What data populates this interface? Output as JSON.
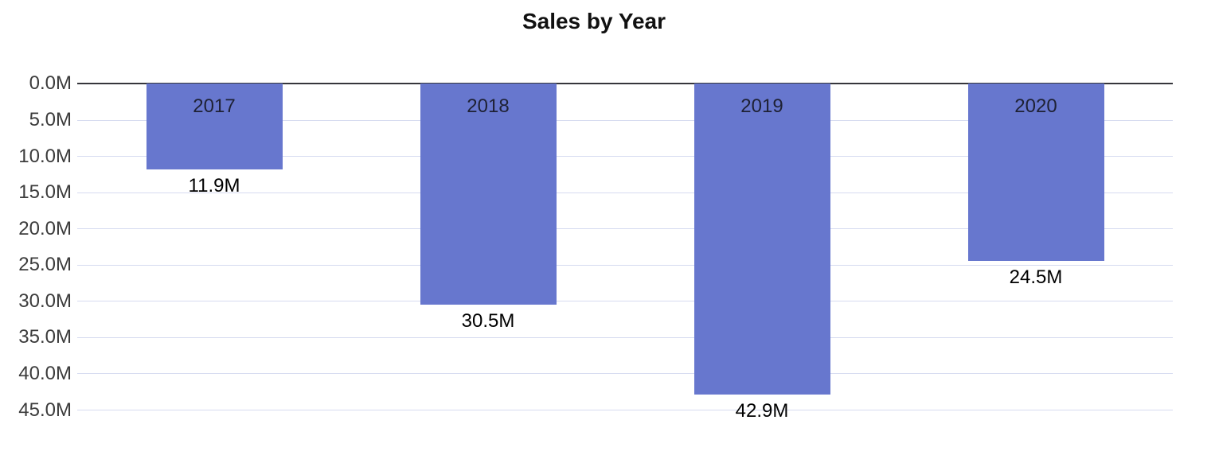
{
  "chart_data": {
    "type": "bar",
    "title": "Sales by Year",
    "categories": [
      "2017",
      "2018",
      "2019",
      "2020"
    ],
    "values": [
      11.9,
      30.5,
      42.9,
      24.5
    ],
    "value_labels": [
      "11.9M",
      "30.5M",
      "42.9M",
      "24.5M"
    ],
    "orientation": "vertical-inverted",
    "xlabel": "",
    "ylabel": "",
    "y_axis": {
      "min": 0,
      "max": 45,
      "tick_step": 5,
      "tick_labels": [
        "0.0M",
        "5.0M",
        "10.0M",
        "15.0M",
        "20.0M",
        "25.0M",
        "30.0M",
        "35.0M",
        "40.0M",
        "45.0M"
      ],
      "direction": "increasing-downward"
    },
    "grid": true,
    "legend": false,
    "category_label_position": "inside-top",
    "value_label_position": "outside-end",
    "colors": {
      "bar_fill": "#6777CE",
      "gridline": "#d6dbf0",
      "zero_line": "#36363c",
      "title_text": "#111111",
      "tick_text": "#3c3c3c",
      "category_label_text": "#1e2134",
      "value_label_text": "#000000",
      "background": "#ffffff"
    }
  }
}
